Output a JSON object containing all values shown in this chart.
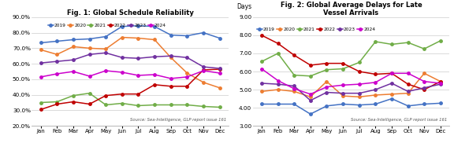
{
  "months": [
    "Jan",
    "Feb",
    "Mar",
    "Apr",
    "May",
    "Jun",
    "Jul",
    "Aug",
    "Sep",
    "Oct",
    "Nov",
    "Dec"
  ],
  "fig1_title": "Fig. 1: Global Schedule Reliability",
  "fig1_ylim": [
    0.2,
    0.9
  ],
  "fig1_yticks": [
    0.2,
    0.3,
    0.4,
    0.5,
    0.6,
    0.7,
    0.8,
    0.9
  ],
  "fig1_source": "Source: Sea-Intelligence, GLP report issue 161",
  "fig1_series": {
    "2019": [
      0.735,
      0.745,
      0.755,
      0.76,
      0.775,
      0.84,
      0.845,
      0.84,
      0.785,
      0.78,
      0.8,
      0.765
    ],
    "2020": [
      0.69,
      0.66,
      0.71,
      0.7,
      0.695,
      0.77,
      0.765,
      0.755,
      0.64,
      0.54,
      0.48,
      0.445
    ],
    "2021": [
      0.35,
      0.355,
      0.395,
      0.41,
      0.335,
      0.345,
      0.33,
      0.335,
      0.335,
      0.335,
      0.325,
      0.32
    ],
    "2022": [
      0.305,
      0.34,
      0.355,
      0.34,
      0.395,
      0.405,
      0.405,
      0.465,
      0.455,
      0.455,
      0.56,
      0.565
    ],
    "2023": [
      0.605,
      0.615,
      0.625,
      0.66,
      0.67,
      0.64,
      0.635,
      0.645,
      0.65,
      0.64,
      0.58,
      0.57
    ],
    "2024": [
      0.515,
      0.535,
      0.55,
      0.52,
      0.555,
      0.545,
      0.525,
      0.53,
      0.505,
      0.515,
      0.555,
      0.54
    ]
  },
  "fig1_colors": {
    "2019": "#4472c4",
    "2020": "#ed7d31",
    "2021": "#70ad47",
    "2022": "#c00000",
    "2023": "#7030a0",
    "2024": "#cc00cc"
  },
  "fig2_title": "Fig. 2: Global Average Delays for Late\nVessel Arrivals",
  "fig2_days_label": "Days",
  "fig2_ylim": [
    3.0,
    9.0
  ],
  "fig2_yticks": [
    3.0,
    4.0,
    5.0,
    6.0,
    7.0,
    8.0,
    9.0
  ],
  "fig2_source": "Source: Sea-Intelligence, GLP report issue 161",
  "fig2_series": {
    "2019": [
      4.2,
      4.2,
      4.2,
      3.65,
      4.1,
      4.2,
      4.15,
      4.2,
      4.5,
      4.1,
      4.2,
      4.25
    ],
    "2020": [
      4.9,
      5.0,
      4.9,
      4.6,
      5.45,
      4.65,
      4.6,
      4.7,
      4.75,
      4.8,
      5.9,
      5.45
    ],
    "2021": [
      6.55,
      7.0,
      5.8,
      5.75,
      6.1,
      6.15,
      6.5,
      7.65,
      7.5,
      7.6,
      7.25,
      7.7
    ],
    "2022": [
      8.0,
      7.55,
      6.9,
      6.35,
      6.45,
      6.45,
      6.0,
      5.85,
      5.9,
      5.3,
      5.0,
      5.45
    ],
    "2023": [
      5.35,
      5.3,
      5.2,
      4.4,
      4.85,
      4.8,
      4.8,
      5.0,
      5.35,
      4.9,
      5.1,
      5.3
    ],
    "2024": [
      6.15,
      5.5,
      5.05,
      4.75,
      5.15,
      5.25,
      5.3,
      5.4,
      5.9,
      5.9,
      5.45,
      5.35
    ]
  },
  "fig2_colors": {
    "2019": "#4472c4",
    "2020": "#ed7d31",
    "2021": "#70ad47",
    "2022": "#c00000",
    "2023": "#7030a0",
    "2024": "#cc00cc"
  },
  "legend_years": [
    "2019",
    "2020",
    "2021",
    "2022",
    "2023",
    "2024"
  ],
  "marker": "o",
  "markersize": 2.5,
  "linewidth": 1.1,
  "bg_color": "#ffffff"
}
